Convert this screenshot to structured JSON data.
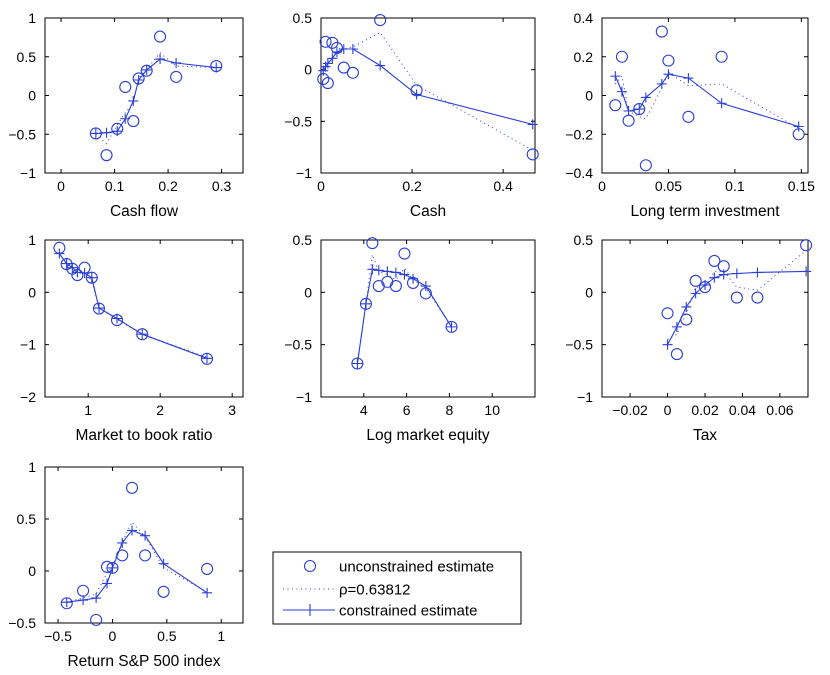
{
  "colors": {
    "series": "#2a3fd6",
    "axis": "#000000",
    "background": "#ffffff"
  },
  "legend": {
    "entries": [
      {
        "key": "unconstrained",
        "label": "unconstrained estimate",
        "marker": "circle",
        "line": "none"
      },
      {
        "key": "rho",
        "label": "ρ=0.63812",
        "marker": "none",
        "line": "dotted"
      },
      {
        "key": "constrained",
        "label": "constrained estimate",
        "marker": "plus",
        "line": "solid"
      }
    ]
  },
  "chart_data": [
    {
      "type": "scatter",
      "xlabel": "Cash flow",
      "xlim": [
        -0.03,
        0.34
      ],
      "ylim": [
        -1,
        1
      ],
      "xticks": [
        0,
        0.1,
        0.2,
        0.3
      ],
      "xtick_labels": [
        "0",
        "0.1",
        "0.2",
        "0.3"
      ],
      "yticks": [
        -1,
        -0.5,
        0,
        0.5,
        1
      ],
      "ytick_labels": [
        "−1",
        "−0.5",
        "0",
        "0.5",
        "1"
      ],
      "series": [
        {
          "name": "unconstrained estimate",
          "x": [
            0.065,
            0.085,
            0.105,
            0.12,
            0.135,
            0.145,
            0.16,
            0.185,
            0.215,
            0.29
          ],
          "y": [
            -0.49,
            -0.77,
            -0.43,
            0.11,
            -0.33,
            0.22,
            0.32,
            0.76,
            0.24,
            0.38
          ]
        },
        {
          "name": "ρ=0.63812",
          "x": [
            0.065,
            0.085,
            0.105,
            0.12,
            0.135,
            0.145,
            0.16,
            0.185,
            0.215,
            0.29
          ],
          "y": [
            -0.5,
            -0.62,
            -0.38,
            -0.22,
            -0.1,
            0.22,
            0.34,
            0.55,
            0.38,
            0.36
          ]
        },
        {
          "name": "constrained estimate",
          "x": [
            0.065,
            0.085,
            0.105,
            0.12,
            0.135,
            0.145,
            0.16,
            0.185,
            0.215,
            0.29
          ],
          "y": [
            -0.49,
            -0.48,
            -0.46,
            -0.3,
            -0.07,
            0.2,
            0.33,
            0.47,
            0.42,
            0.36
          ]
        }
      ]
    },
    {
      "type": "scatter",
      "xlabel": "Cash",
      "xlim": [
        0,
        0.47
      ],
      "ylim": [
        -1,
        0.5
      ],
      "xticks": [
        0,
        0.2,
        0.4
      ],
      "xtick_labels": [
        "0",
        "0.2",
        "0.4"
      ],
      "yticks": [
        -1,
        -0.5,
        0,
        0.5
      ],
      "ytick_labels": [
        "−1",
        "−0.5",
        "0",
        "0.5"
      ],
      "series": [
        {
          "name": "unconstrained estimate",
          "x": [
            0.005,
            0.01,
            0.015,
            0.025,
            0.035,
            0.05,
            0.07,
            0.13,
            0.21,
            0.465
          ],
          "y": [
            -0.09,
            0.27,
            -0.13,
            0.26,
            0.21,
            0.02,
            -0.03,
            0.48,
            -0.2,
            -0.82
          ]
        },
        {
          "name": "ρ=0.63812",
          "x": [
            0.005,
            0.01,
            0.015,
            0.025,
            0.035,
            0.05,
            0.07,
            0.13,
            0.21,
            0.465
          ],
          "y": [
            -0.05,
            0.03,
            0.07,
            0.12,
            0.16,
            0.2,
            0.22,
            0.36,
            -0.15,
            -0.78
          ]
        },
        {
          "name": "constrained estimate",
          "x": [
            0.005,
            0.01,
            0.015,
            0.025,
            0.035,
            0.05,
            0.07,
            0.13,
            0.21,
            0.465
          ],
          "y": [
            -0.01,
            0.03,
            0.06,
            0.11,
            0.17,
            0.2,
            0.2,
            0.04,
            -0.24,
            -0.53
          ]
        }
      ]
    },
    {
      "type": "scatter",
      "xlabel": "Long term investment",
      "xlim": [
        0,
        0.155
      ],
      "ylim": [
        -0.4,
        0.4
      ],
      "xticks": [
        0,
        0.05,
        0.1,
        0.15
      ],
      "xtick_labels": [
        "0",
        "0.05",
        "0.1",
        "0.15"
      ],
      "yticks": [
        -0.4,
        -0.2,
        0,
        0.2,
        0.4
      ],
      "ytick_labels": [
        "−0.4",
        "−0.2",
        "0",
        "0.2",
        "0.4"
      ],
      "series": [
        {
          "name": "unconstrained estimate",
          "x": [
            0.01,
            0.015,
            0.02,
            0.028,
            0.033,
            0.045,
            0.05,
            0.065,
            0.09,
            0.148
          ],
          "y": [
            -0.05,
            0.2,
            -0.13,
            -0.07,
            -0.36,
            0.33,
            0.18,
            -0.11,
            0.2,
            -0.2
          ]
        },
        {
          "name": "ρ=0.63812",
          "x": [
            0.01,
            0.015,
            0.02,
            0.028,
            0.033,
            0.045,
            0.05,
            0.065,
            0.09,
            0.148
          ],
          "y": [
            0.06,
            0.1,
            -0.08,
            -0.11,
            -0.12,
            0.04,
            0.12,
            0.05,
            0.06,
            -0.17
          ]
        },
        {
          "name": "constrained estimate",
          "x": [
            0.01,
            0.015,
            0.02,
            0.028,
            0.033,
            0.045,
            0.05,
            0.065,
            0.09,
            0.148
          ],
          "y": [
            0.1,
            0.02,
            -0.08,
            -0.07,
            -0.01,
            0.06,
            0.11,
            0.09,
            -0.04,
            -0.16
          ]
        }
      ]
    },
    {
      "type": "scatter",
      "xlabel": "Market to book ratio",
      "xlim": [
        0.4,
        3.15
      ],
      "ylim": [
        -2,
        1
      ],
      "xticks": [
        1,
        2,
        3
      ],
      "xtick_labels": [
        "1",
        "2",
        "3"
      ],
      "yticks": [
        -2,
        -1,
        0,
        1
      ],
      "ytick_labels": [
        "−2",
        "−1",
        "0",
        "1"
      ],
      "series": [
        {
          "name": "unconstrained estimate",
          "x": [
            0.6,
            0.7,
            0.78,
            0.85,
            0.95,
            1.05,
            1.15,
            1.4,
            1.75,
            2.65
          ],
          "y": [
            0.85,
            0.54,
            0.45,
            0.33,
            0.47,
            0.28,
            -0.31,
            -0.53,
            -0.8,
            -1.27
          ]
        },
        {
          "name": "ρ=0.63812",
          "x": [
            0.6,
            0.7,
            0.78,
            0.85,
            0.95,
            1.05,
            1.15,
            1.4,
            1.75,
            2.65
          ],
          "y": [
            0.72,
            0.56,
            0.46,
            0.38,
            0.38,
            0.22,
            -0.3,
            -0.52,
            -0.8,
            -1.24
          ]
        },
        {
          "name": "constrained estimate",
          "x": [
            0.6,
            0.7,
            0.78,
            0.85,
            0.95,
            1.05,
            1.15,
            1.4,
            1.75,
            2.65
          ],
          "y": [
            0.74,
            0.55,
            0.47,
            0.38,
            0.37,
            0.28,
            -0.3,
            -0.5,
            -0.8,
            -1.26
          ]
        }
      ]
    },
    {
      "type": "scatter",
      "xlabel": "Log market equity",
      "xlim": [
        2,
        12
      ],
      "ylim": [
        -1,
        0.5
      ],
      "xticks": [
        4,
        6,
        8,
        10
      ],
      "xtick_labels": [
        "4",
        "6",
        "8",
        "10"
      ],
      "yticks": [
        -1,
        -0.5,
        0,
        0.5
      ],
      "ytick_labels": [
        "−1",
        "−0.5",
        "0",
        "0.5"
      ],
      "series": [
        {
          "name": "unconstrained estimate",
          "x": [
            3.7,
            4.1,
            4.4,
            4.7,
            5.1,
            5.5,
            5.9,
            6.3,
            6.9,
            8.1
          ],
          "y": [
            -0.68,
            -0.11,
            0.47,
            0.06,
            0.1,
            0.06,
            0.37,
            0.09,
            -0.01,
            -0.33
          ]
        },
        {
          "name": "ρ=0.63812",
          "x": [
            3.7,
            4.1,
            4.4,
            4.7,
            5.1,
            5.5,
            5.9,
            6.3,
            6.9,
            8.1
          ],
          "y": [
            -0.68,
            -0.11,
            0.36,
            0.2,
            0.17,
            0.12,
            0.23,
            0.12,
            0.04,
            -0.33
          ]
        },
        {
          "name": "constrained estimate",
          "x": [
            3.7,
            4.1,
            4.4,
            4.7,
            5.1,
            5.5,
            5.9,
            6.3,
            6.9,
            8.1
          ],
          "y": [
            -0.68,
            -0.11,
            0.22,
            0.21,
            0.2,
            0.19,
            0.17,
            0.13,
            0.06,
            -0.33
          ]
        }
      ]
    },
    {
      "type": "scatter",
      "xlabel": "Tax",
      "xlim": [
        -0.035,
        0.075
      ],
      "ylim": [
        -1,
        0.5
      ],
      "xticks": [
        -0.02,
        0,
        0.02,
        0.04,
        0.06
      ],
      "xtick_labels": [
        "−0.02",
        "0",
        "0.02",
        "0.04",
        "0.06"
      ],
      "yticks": [
        -1,
        -0.5,
        0,
        0.5
      ],
      "ytick_labels": [
        "−1",
        "−0.5",
        "0",
        "0.5"
      ],
      "series": [
        {
          "name": "unconstrained estimate",
          "x": [
            0,
            0.005,
            0.01,
            0.015,
            0.02,
            0.025,
            0.03,
            0.037,
            0.048,
            0.074
          ],
          "y": [
            -0.2,
            -0.59,
            -0.26,
            0.11,
            0.05,
            0.3,
            0.25,
            -0.05,
            -0.05,
            0.45
          ]
        },
        {
          "name": "ρ=0.63812",
          "x": [
            0,
            0.005,
            0.01,
            0.015,
            0.02,
            0.025,
            0.03,
            0.037,
            0.048,
            0.074
          ],
          "y": [
            -0.45,
            -0.4,
            -0.2,
            0.05,
            0.05,
            0.2,
            0.2,
            0.05,
            0.02,
            0.4
          ]
        },
        {
          "name": "constrained estimate",
          "x": [
            0,
            0.005,
            0.01,
            0.015,
            0.02,
            0.025,
            0.03,
            0.037,
            0.048,
            0.074
          ],
          "y": [
            -0.5,
            -0.33,
            -0.14,
            -0.01,
            0.07,
            0.14,
            0.17,
            0.18,
            0.19,
            0.2
          ]
        }
      ]
    },
    {
      "type": "scatter",
      "xlabel": "Return S&P 500 index",
      "xlim": [
        -0.62,
        1.2
      ],
      "ylim": [
        -0.5,
        1
      ],
      "xticks": [
        -0.5,
        0,
        0.5,
        1
      ],
      "xtick_labels": [
        "−0.5",
        "0",
        "0.5",
        "1"
      ],
      "yticks": [
        -0.5,
        0,
        0.5,
        1
      ],
      "ytick_labels": [
        "−0.5",
        "0",
        "0.5",
        "1"
      ],
      "series": [
        {
          "name": "unconstrained estimate",
          "x": [
            -0.42,
            -0.27,
            -0.15,
            -0.05,
            0.0,
            0.09,
            0.18,
            0.3,
            0.47,
            0.87
          ],
          "y": [
            -0.31,
            -0.19,
            -0.47,
            0.04,
            0.03,
            0.15,
            0.8,
            0.15,
            -0.2,
            0.02
          ]
        },
        {
          "name": "ρ=0.63812",
          "x": [
            -0.42,
            -0.27,
            -0.15,
            -0.05,
            0.0,
            0.09,
            0.18,
            0.3,
            0.47,
            0.87
          ],
          "y": [
            -0.3,
            -0.26,
            -0.22,
            -0.02,
            0.05,
            0.28,
            0.47,
            0.33,
            0.03,
            -0.2
          ]
        },
        {
          "name": "constrained estimate",
          "x": [
            -0.42,
            -0.27,
            -0.15,
            -0.05,
            0.0,
            0.09,
            0.18,
            0.3,
            0.47,
            0.87
          ],
          "y": [
            -0.3,
            -0.28,
            -0.26,
            -0.12,
            0.03,
            0.27,
            0.39,
            0.34,
            0.07,
            -0.21
          ]
        }
      ]
    }
  ]
}
